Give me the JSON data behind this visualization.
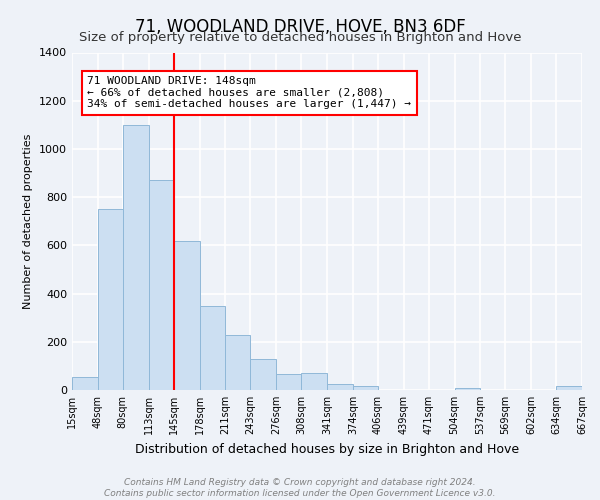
{
  "title": "71, WOODLAND DRIVE, HOVE, BN3 6DF",
  "subtitle": "Size of property relative to detached houses in Brighton and Hove",
  "xlabel": "Distribution of detached houses by size in Brighton and Hove",
  "ylabel": "Number of detached properties",
  "footnote1": "Contains HM Land Registry data © Crown copyright and database right 2024.",
  "footnote2": "Contains public sector information licensed under the Open Government Licence v3.0.",
  "bar_edges": [
    15,
    48,
    80,
    113,
    145,
    178,
    211,
    243,
    276,
    308,
    341,
    374,
    406,
    439,
    471,
    504,
    537,
    569,
    602,
    634,
    667
  ],
  "bar_heights": [
    55,
    750,
    1100,
    870,
    620,
    350,
    230,
    130,
    65,
    72,
    25,
    18,
    0,
    0,
    0,
    10,
    0,
    0,
    0,
    15
  ],
  "bar_color": "#ccdff2",
  "bar_edge_color": "#90b8d8",
  "vline_x": 145,
  "vline_color": "red",
  "annotation_text": "71 WOODLAND DRIVE: 148sqm\n← 66% of detached houses are smaller (2,808)\n34% of semi-detached houses are larger (1,447) →",
  "annotation_box_color": "white",
  "annotation_box_edge_color": "red",
  "ylim": [
    0,
    1400
  ],
  "tick_labels": [
    "15sqm",
    "48sqm",
    "80sqm",
    "113sqm",
    "145sqm",
    "178sqm",
    "211sqm",
    "243sqm",
    "276sqm",
    "308sqm",
    "341sqm",
    "374sqm",
    "406sqm",
    "439sqm",
    "471sqm",
    "504sqm",
    "537sqm",
    "569sqm",
    "602sqm",
    "634sqm",
    "667sqm"
  ],
  "background_color": "#eef2f8",
  "grid_color": "white",
  "title_fontsize": 12,
  "subtitle_fontsize": 9.5,
  "xlabel_fontsize": 9,
  "ylabel_fontsize": 8,
  "tick_fontsize": 7,
  "annotation_fontsize": 8,
  "footnote_fontsize": 6.5
}
